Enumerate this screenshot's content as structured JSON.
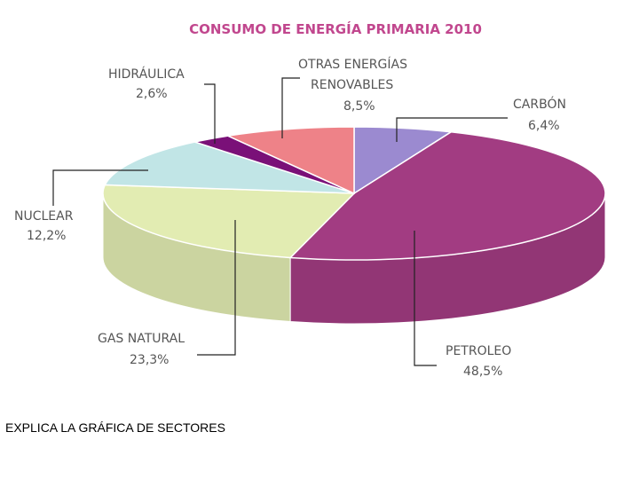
{
  "chart_data": {
    "type": "pie",
    "title": "CONSUMO DE ENERGÍA PRIMARIA 2010",
    "slices": [
      {
        "name": "CARBÓN",
        "label": "6,4%",
        "value": 6.4,
        "color": "#9b8ad0"
      },
      {
        "name": "PETROLEO",
        "label": "48,5%",
        "value": 48.5,
        "color": "#a23c82"
      },
      {
        "name": "GAS NATURAL",
        "label": "23,3%",
        "value": 23.3,
        "color": "#e2ecb2"
      },
      {
        "name": "NUCLEAR",
        "label": "12,2%",
        "value": 12.2,
        "color": "#c1e5e6"
      },
      {
        "name": "HIDRÁULICA",
        "label": "2,6%",
        "value": 2.6,
        "color": "#7a1078"
      },
      {
        "name_lines": [
          "OTRAS ENERGÍAS",
          "RENOVABLES"
        ],
        "label": "8,5%",
        "value": 8.5,
        "color": "#ee8288"
      }
    ],
    "title_color": "#c1478e"
  },
  "caption": "EXPLICA LA GRÁFICA DE SECTORES"
}
